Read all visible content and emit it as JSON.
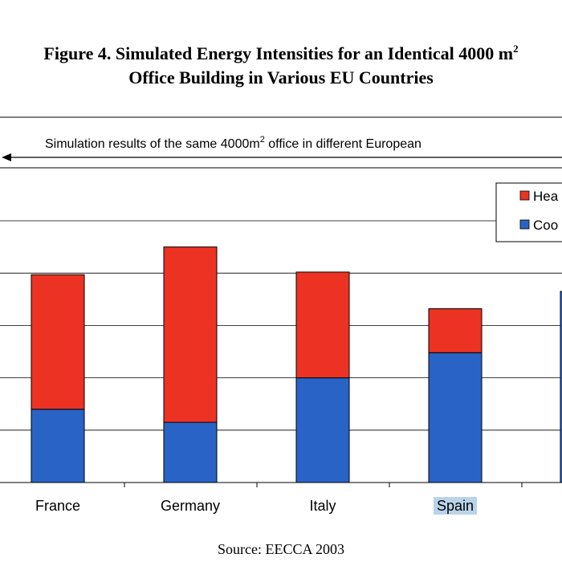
{
  "figure": {
    "title_line1": "Figure 4. Simulated Energy Intensities for an Identical 4000 m",
    "title_sup": "2",
    "title_line2": "Office Building in Various EU Countries",
    "source": "Source: EECCA 2003"
  },
  "annotation": {
    "text_before": "Simulation results of the same 4000m",
    "text_sup": "2",
    "text_after": " office in different European"
  },
  "chart_data": {
    "type": "bar",
    "stacked": true,
    "categories": [
      "France",
      "Germany",
      "Italy",
      "Spain"
    ],
    "highlighted_category": "Spain",
    "series": [
      {
        "name": "Coo",
        "color": "#2a63c6",
        "values": [
          1.4,
          1.15,
          2.0,
          2.48
        ]
      },
      {
        "name": "Hea",
        "color": "#ec3323",
        "values": [
          2.57,
          3.35,
          2.02,
          0.84
        ]
      }
    ],
    "ylim": [
      0,
      5.0
    ],
    "y_gridlines": [
      1,
      2,
      3,
      4,
      5
    ],
    "grid": true,
    "legend": "top-right",
    "title": "",
    "xlabel": "",
    "ylabel": ""
  }
}
